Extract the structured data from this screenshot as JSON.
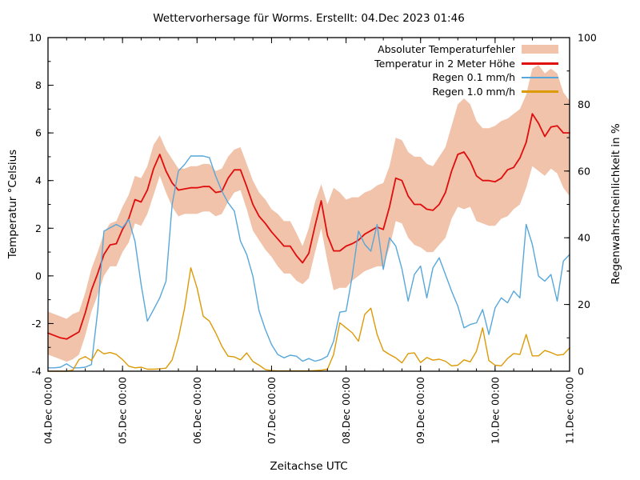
{
  "title": "Wettervorhersage für Worms. Erstellt: 04.Dec 2023 01:46",
  "axes": {
    "x_label": "Zeitachse UTC",
    "y_left_label": "Temperatur °Celsius",
    "y_right_label": "Regenwahrscheinlichkeit in %",
    "x_tick_labels": [
      "04.Dec 00:00",
      "05.Dec 00:00",
      "06.Dec 00:00",
      "07.Dec 00:00",
      "08.Dec 00:00",
      "09.Dec 00:00",
      "10.Dec 00:00",
      "11.Dec 00:00"
    ],
    "y_left_ticks": [
      10,
      8,
      6,
      4,
      2,
      0,
      -2,
      -4
    ],
    "y_right_ticks": [
      100,
      80,
      60,
      40,
      20,
      0
    ]
  },
  "legend": {
    "items": [
      {
        "label": "Absoluter Temperaturfehler",
        "kind": "band",
        "color": "#f0c3aa"
      },
      {
        "label": "Temperatur in 2 Meter Höhe",
        "kind": "line",
        "color": "#e00d0d"
      },
      {
        "label": "Regen 0.1 mm/h",
        "kind": "line",
        "color": "#57a7db"
      },
      {
        "label": "Regen 1.0 mm/h",
        "kind": "line",
        "color": "#dc9a06"
      }
    ]
  },
  "chart_data": {
    "type": "line",
    "title": "Wettervorhersage für Worms. Erstellt: 04.Dec 2023 01:46",
    "xlabel": "Zeitachse UTC",
    "ylabel_left": "Temperatur °Celsius",
    "ylabel_right": "Regenwahrscheinlichkeit in %",
    "x_unit": "hours since 04.Dec 00:00 UTC",
    "x_range_hours": [
      0,
      168
    ],
    "x_major_tick_hours": 24,
    "x_minor_tick_hours": 6,
    "y_left_range": [
      -4,
      10
    ],
    "y_right_range": [
      0,
      100
    ],
    "grid": false,
    "legend_position": "top-right-inside",
    "x_hours": [
      0,
      2,
      4,
      6,
      8,
      10,
      12,
      14,
      16,
      18,
      20,
      22,
      24,
      26,
      28,
      30,
      32,
      34,
      36,
      38,
      40,
      42,
      44,
      46,
      48,
      50,
      52,
      54,
      56,
      58,
      60,
      62,
      64,
      66,
      68,
      70,
      72,
      74,
      76,
      78,
      80,
      82,
      84,
      86,
      88,
      90,
      92,
      94,
      96,
      98,
      100,
      102,
      104,
      106,
      108,
      110,
      112,
      114,
      116,
      118,
      120,
      122,
      124,
      126,
      128,
      130,
      132,
      134,
      136,
      138,
      140,
      142,
      144,
      146,
      148,
      150,
      152,
      154,
      156,
      158,
      160,
      162,
      164,
      166,
      168
    ],
    "series": [
      {
        "name": "Absoluter Temperaturfehler",
        "axis": "left",
        "kind": "band",
        "color": "#f0c3aa",
        "upper": [
          -1.5,
          -1.6,
          -1.7,
          -1.8,
          -1.6,
          -1.5,
          -0.7,
          0.3,
          1.0,
          1.8,
          2.2,
          2.3,
          2.9,
          3.4,
          4.2,
          4.1,
          4.6,
          5.5,
          5.9,
          5.3,
          4.9,
          4.5,
          4.5,
          4.6,
          4.6,
          4.7,
          4.7,
          4.4,
          4.5,
          5.0,
          5.3,
          5.4,
          4.7,
          4.0,
          3.5,
          3.2,
          2.8,
          2.6,
          2.3,
          2.3,
          1.8,
          1.25,
          2.0,
          3.1,
          3.85,
          3.0,
          3.7,
          3.5,
          3.2,
          3.3,
          3.3,
          3.5,
          3.6,
          3.8,
          3.9,
          4.6,
          5.8,
          5.7,
          5.2,
          5.0,
          5.0,
          4.7,
          4.6,
          5.0,
          5.4,
          6.3,
          7.2,
          7.45,
          7.2,
          6.5,
          6.2,
          6.2,
          6.3,
          6.5,
          6.6,
          6.8,
          7.0,
          7.6,
          8.7,
          8.85,
          8.5,
          8.7,
          8.5,
          7.7,
          7.35
        ],
        "lower": [
          -3.3,
          -3.4,
          -3.5,
          -3.6,
          -3.5,
          -3.3,
          -2.5,
          -1.5,
          -0.8,
          0.0,
          0.4,
          0.4,
          1.0,
          1.4,
          2.2,
          2.1,
          2.6,
          3.4,
          4.2,
          3.5,
          2.9,
          2.5,
          2.6,
          2.6,
          2.6,
          2.7,
          2.7,
          2.5,
          2.6,
          3.1,
          3.5,
          3.6,
          2.8,
          1.9,
          1.5,
          1.1,
          0.8,
          0.4,
          0.1,
          0.1,
          -0.2,
          -0.35,
          -0.1,
          1.0,
          2.0,
          0.6,
          -0.6,
          -0.5,
          -0.5,
          -0.2,
          0.0,
          0.2,
          0.3,
          0.4,
          0.4,
          1.2,
          2.3,
          2.2,
          1.6,
          1.3,
          1.2,
          1.0,
          1.0,
          1.3,
          1.6,
          2.4,
          2.9,
          2.8,
          2.9,
          2.3,
          2.2,
          2.1,
          2.1,
          2.4,
          2.5,
          2.8,
          3.0,
          3.7,
          4.6,
          4.4,
          4.2,
          4.5,
          4.3,
          3.7,
          3.35
        ]
      },
      {
        "name": "Temperatur in 2 Meter Höhe",
        "axis": "left",
        "kind": "line",
        "color": "#e00d0d",
        "width": 1.8,
        "values": [
          -2.4,
          -2.5,
          -2.6,
          -2.65,
          -2.5,
          -2.35,
          -1.55,
          -0.6,
          0.1,
          0.9,
          1.3,
          1.35,
          1.95,
          2.4,
          3.2,
          3.1,
          3.6,
          4.5,
          5.1,
          4.4,
          3.9,
          3.6,
          3.65,
          3.7,
          3.7,
          3.75,
          3.75,
          3.5,
          3.55,
          4.1,
          4.45,
          4.45,
          3.75,
          3.0,
          2.5,
          2.2,
          1.85,
          1.55,
          1.25,
          1.25,
          0.85,
          0.55,
          0.95,
          2.1,
          3.15,
          1.7,
          1.05,
          1.05,
          1.25,
          1.35,
          1.5,
          1.75,
          1.9,
          2.05,
          1.95,
          2.9,
          4.1,
          4.0,
          3.35,
          3.0,
          3.0,
          2.8,
          2.75,
          3.0,
          3.5,
          4.4,
          5.1,
          5.2,
          4.8,
          4.2,
          4.0,
          4.0,
          3.95,
          4.1,
          4.45,
          4.55,
          4.95,
          5.6,
          6.8,
          6.4,
          5.85,
          6.25,
          6.3,
          6.0,
          6.0
        ]
      },
      {
        "name": "Regen 0.1 mm/h",
        "axis": "right",
        "kind": "line",
        "color": "#57a7db",
        "width": 1.4,
        "values": [
          1,
          1,
          1.2,
          2.2,
          1,
          1,
          1.2,
          2,
          18,
          42,
          43,
          44,
          43,
          45.5,
          39,
          26,
          15,
          18.5,
          22,
          27,
          50,
          60,
          62,
          64.5,
          64.5,
          64.5,
          64,
          58.5,
          54,
          50.5,
          48,
          39,
          35,
          28.5,
          18,
          12.5,
          8,
          5,
          4,
          4.8,
          4.5,
          3,
          3.8,
          3,
          3.5,
          4.5,
          9,
          17.7,
          18,
          28.5,
          42,
          38,
          36,
          44,
          30.5,
          40,
          37.5,
          30.7,
          21,
          29,
          31.5,
          22,
          31,
          34,
          29,
          24,
          19.5,
          13,
          14,
          14.5,
          18.5,
          11,
          19,
          22,
          20.5,
          24,
          22,
          44,
          38,
          28.5,
          27,
          29,
          21,
          33,
          35
        ]
      },
      {
        "name": "Regen 1.0 mm/h",
        "axis": "right",
        "kind": "line",
        "color": "#dc9a06",
        "width": 1.4,
        "values": [
          0,
          0,
          0,
          0,
          0.3,
          3.5,
          4.4,
          3.2,
          6.5,
          5.2,
          5.6,
          5,
          3.5,
          1.5,
          1,
          1.2,
          0.6,
          0.6,
          0.7,
          0.9,
          3.4,
          10,
          19,
          31,
          25,
          16.5,
          15,
          11.5,
          7.5,
          4.5,
          4.3,
          3.4,
          5.5,
          2.9,
          1.8,
          0.5,
          0.2,
          0.1,
          0.1,
          0.1,
          0.1,
          0.1,
          0.1,
          0.2,
          0.3,
          0.6,
          5,
          14.5,
          13,
          11.5,
          9,
          17,
          18.9,
          11,
          6.2,
          5,
          4,
          2.5,
          5.3,
          5.5,
          2.6,
          4.1,
          3.3,
          3.6,
          3,
          1.6,
          1.8,
          3.4,
          2.8,
          6,
          13,
          3.2,
          1.8,
          1.6,
          3.8,
          5.3,
          5,
          11,
          4.6,
          4.6,
          6.2,
          5.6,
          4.8,
          5,
          7
        ]
      }
    ]
  }
}
